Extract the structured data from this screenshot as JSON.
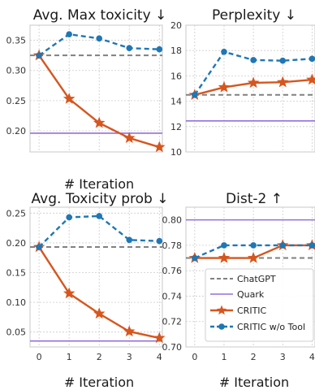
{
  "colors": {
    "chatgpt": "#808080",
    "quark": "#9370db",
    "critic": "#d6561f",
    "critic_wo_tool": "#1f77b4",
    "grid": "#cccccc",
    "spine": "#c8c8c8"
  },
  "legend": {
    "placement": "lower-right of Dist-2 panel",
    "entries": [
      "ChatGPT",
      "Quark",
      "CRITIC",
      "CRITIC w/o Tool"
    ]
  },
  "chart_data": [
    {
      "type": "line",
      "title": "Avg. Max toxicity ↓",
      "xlabel": "# Iteration",
      "x": [
        0,
        1,
        2,
        3,
        4
      ],
      "xlim": [
        -0.3,
        4.1
      ],
      "ylim": [
        0.165,
        0.375
      ],
      "yticks": [
        0.2,
        0.25,
        0.3,
        0.35
      ],
      "ytick_labels": [
        "0.20",
        "0.25",
        "0.30",
        "0.35"
      ],
      "grid": true,
      "hlines": [
        {
          "name": "ChatGPT",
          "value": 0.325
        },
        {
          "name": "Quark",
          "value": 0.196
        }
      ],
      "series": [
        {
          "name": "CRITIC",
          "values": [
            0.325,
            0.253,
            0.213,
            0.188,
            0.173
          ]
        },
        {
          "name": "CRITIC w/o Tool",
          "values": [
            0.325,
            0.36,
            0.353,
            0.337,
            0.335
          ]
        }
      ]
    },
    {
      "type": "line",
      "title": "Perplexity ↓",
      "xlabel": "",
      "x": [
        0,
        1,
        2,
        3,
        4
      ],
      "xlim": [
        -0.3,
        4.1
      ],
      "ylim": [
        10,
        20
      ],
      "yticks": [
        10,
        12,
        14,
        16,
        18,
        20
      ],
      "ytick_labels": [
        "10",
        "12",
        "14",
        "16",
        "18",
        "20"
      ],
      "grid": true,
      "hlines": [
        {
          "name": "ChatGPT",
          "value": 14.5
        },
        {
          "name": "Quark",
          "value": 12.45
        }
      ],
      "series": [
        {
          "name": "CRITIC",
          "values": [
            14.5,
            15.1,
            15.45,
            15.5,
            15.7
          ]
        },
        {
          "name": "CRITIC w/o Tool",
          "values": [
            14.5,
            17.9,
            17.25,
            17.2,
            17.35
          ]
        }
      ]
    },
    {
      "type": "line",
      "title": "Avg. Toxicity prob ↓",
      "xlabel": "# Iteration",
      "x": [
        0,
        1,
        2,
        3,
        4
      ],
      "xlim": [
        -0.3,
        4.1
      ],
      "ylim": [
        0.025,
        0.26
      ],
      "yticks": [
        0.05,
        0.1,
        0.15,
        0.2,
        0.25
      ],
      "ytick_labels": [
        "0.05",
        "0.10",
        "0.15",
        "0.20",
        "0.25"
      ],
      "grid": true,
      "hlines": [
        {
          "name": "ChatGPT",
          "value": 0.193
        },
        {
          "name": "Quark",
          "value": 0.035
        }
      ],
      "series": [
        {
          "name": "CRITIC",
          "values": [
            0.193,
            0.115,
            0.081,
            0.051,
            0.04
          ]
        },
        {
          "name": "CRITIC w/o Tool",
          "values": [
            0.193,
            0.243,
            0.245,
            0.205,
            0.203
          ]
        }
      ]
    },
    {
      "type": "line",
      "title": "Dist-2 ↑",
      "xlabel": "# Iteration",
      "x": [
        0,
        1,
        2,
        3,
        4
      ],
      "xlim": [
        -0.3,
        4.1
      ],
      "ylim": [
        0.7,
        0.81
      ],
      "yticks": [
        0.7,
        0.72,
        0.74,
        0.76,
        0.78,
        0.8
      ],
      "ytick_labels": [
        "0.70",
        "0.72",
        "0.74",
        "0.76",
        "0.78",
        "0.80"
      ],
      "grid": true,
      "hlines": [
        {
          "name": "ChatGPT",
          "value": 0.77
        },
        {
          "name": "Quark",
          "value": 0.8
        }
      ],
      "series": [
        {
          "name": "CRITIC",
          "values": [
            0.77,
            0.77,
            0.77,
            0.78,
            0.78
          ]
        },
        {
          "name": "CRITIC w/o Tool",
          "values": [
            0.77,
            0.78,
            0.78,
            0.78,
            0.78
          ]
        }
      ]
    }
  ]
}
